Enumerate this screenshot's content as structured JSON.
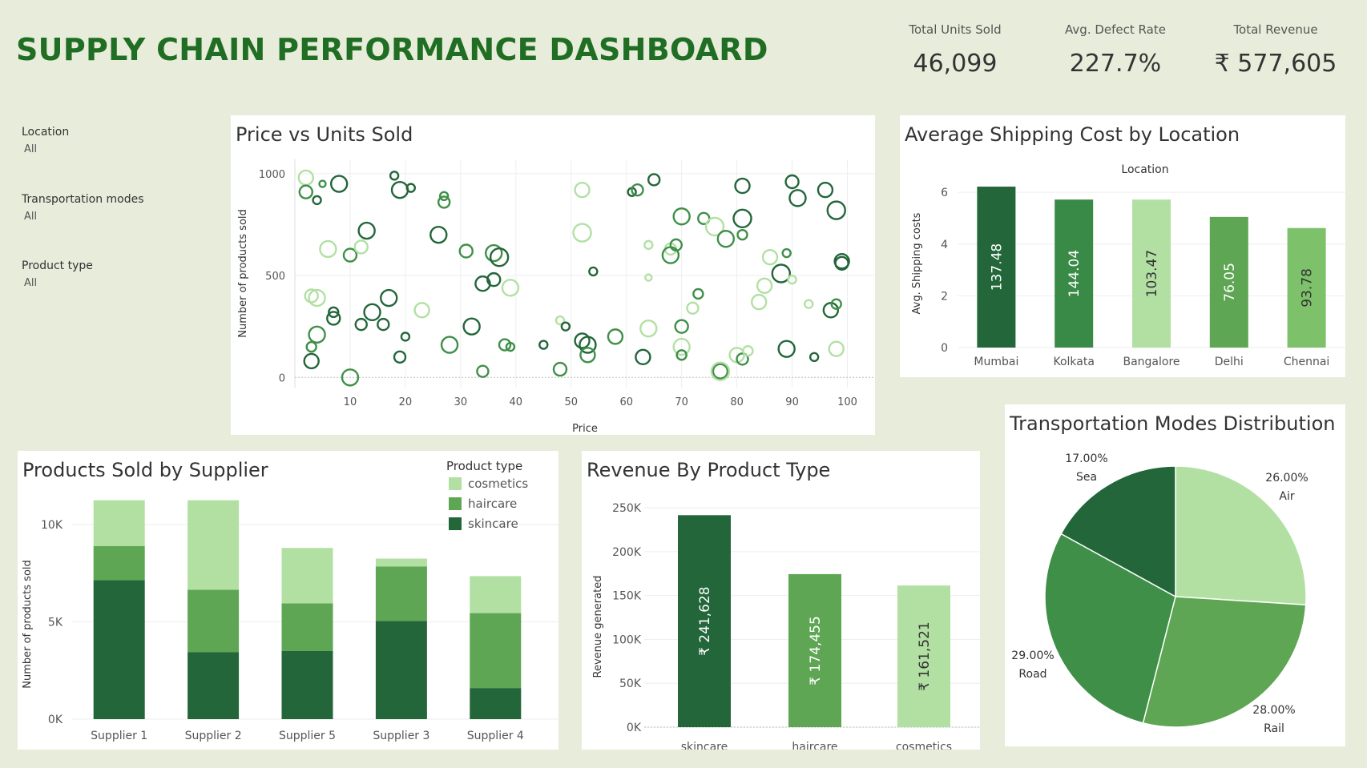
{
  "dashboard": {
    "title": "SUPPLY CHAIN PERFORMANCE DASHBOARD"
  },
  "kpis": [
    {
      "label": "Total Units Sold",
      "value": "46,099"
    },
    {
      "label": "Avg. Defect Rate",
      "value": "227.7%"
    },
    {
      "label": "Total Revenue",
      "value": "₹ 577,605"
    }
  ],
  "filters": [
    {
      "label": "Location",
      "value": "All"
    },
    {
      "label": "Transportation modes",
      "value": "All"
    },
    {
      "label": "Product type",
      "value": "All"
    }
  ],
  "colors": {
    "dark": "#23663a",
    "mid": "#3f8f48",
    "midlight": "#5ea653",
    "light": "#7dc26b",
    "pale": "#b2e0a3",
    "bg": "#e8ecdb"
  },
  "charts": {
    "scatter": {
      "title": "Price vs Units Sold",
      "chart_data": {
        "type": "scatter",
        "xlabel": "Price",
        "ylabel": "Number of products sold",
        "xlim": [
          0,
          105
        ],
        "ylim": [
          -50,
          1070
        ],
        "xticks": [
          10,
          20,
          30,
          40,
          50,
          60,
          70,
          80,
          90,
          100
        ],
        "yticks": [
          0,
          500,
          1000
        ],
        "points": [
          [
            2,
            980,
            9,
            0
          ],
          [
            2,
            910,
            8,
            1
          ],
          [
            4,
            870,
            5,
            2
          ],
          [
            5,
            950,
            4,
            1
          ],
          [
            3,
            400,
            8,
            0
          ],
          [
            4,
            390,
            10,
            0
          ],
          [
            6,
            630,
            10,
            0
          ],
          [
            4,
            210,
            10,
            1
          ],
          [
            3,
            80,
            9,
            2
          ],
          [
            3,
            150,
            6,
            1
          ],
          [
            7,
            290,
            8,
            2
          ],
          [
            7,
            320,
            6,
            2
          ],
          [
            8,
            950,
            10,
            2
          ],
          [
            10,
            600,
            8,
            1
          ],
          [
            12,
            640,
            8,
            0
          ],
          [
            13,
            720,
            10,
            2
          ],
          [
            10,
            0,
            10,
            1
          ],
          [
            14,
            320,
            10,
            2
          ],
          [
            12,
            260,
            7,
            2
          ],
          [
            16,
            260,
            7,
            2
          ],
          [
            17,
            390,
            10,
            2
          ],
          [
            18,
            990,
            5,
            2
          ],
          [
            19,
            920,
            10,
            2
          ],
          [
            21,
            930,
            5,
            2
          ],
          [
            20,
            200,
            5,
            2
          ],
          [
            19,
            100,
            7,
            2
          ],
          [
            23,
            330,
            9,
            0
          ],
          [
            26,
            700,
            10,
            2
          ],
          [
            27,
            860,
            7,
            1
          ],
          [
            27,
            890,
            5,
            1
          ],
          [
            28,
            160,
            10,
            1
          ],
          [
            31,
            620,
            8,
            1
          ],
          [
            32,
            250,
            10,
            2
          ],
          [
            34,
            460,
            9,
            2
          ],
          [
            36,
            610,
            10,
            1
          ],
          [
            36,
            480,
            8,
            2
          ],
          [
            37,
            590,
            11,
            2
          ],
          [
            38,
            160,
            7,
            1
          ],
          [
            39,
            150,
            5,
            1
          ],
          [
            39,
            440,
            10,
            0
          ],
          [
            34,
            30,
            7,
            1
          ],
          [
            45,
            160,
            5,
            2
          ],
          [
            48,
            280,
            5,
            0
          ],
          [
            48,
            40,
            8,
            1
          ],
          [
            52,
            920,
            9,
            0
          ],
          [
            52,
            710,
            11,
            0
          ],
          [
            53,
            160,
            10,
            2
          ],
          [
            52,
            180,
            9,
            2
          ],
          [
            53,
            110,
            9,
            1
          ],
          [
            49,
            250,
            5,
            2
          ],
          [
            54,
            520,
            5,
            2
          ],
          [
            58,
            200,
            9,
            1
          ],
          [
            61,
            910,
            5,
            2
          ],
          [
            62,
            920,
            7,
            1
          ],
          [
            63,
            100,
            9,
            2
          ],
          [
            64,
            240,
            10,
            0
          ],
          [
            65,
            970,
            7,
            2
          ],
          [
            64,
            650,
            5,
            0
          ],
          [
            64,
            490,
            4,
            0
          ],
          [
            68,
            630,
            7,
            0
          ],
          [
            68,
            600,
            10,
            1
          ],
          [
            69,
            650,
            7,
            1
          ],
          [
            70,
            790,
            10,
            1
          ],
          [
            70,
            250,
            8,
            1
          ],
          [
            70,
            150,
            10,
            0
          ],
          [
            70,
            110,
            6,
            1
          ],
          [
            72,
            340,
            7,
            0
          ],
          [
            73,
            410,
            6,
            1
          ],
          [
            74,
            780,
            7,
            1
          ],
          [
            76,
            740,
            11,
            0
          ],
          [
            78,
            680,
            10,
            1
          ],
          [
            77,
            30,
            9,
            1
          ],
          [
            77,
            30,
            11,
            0
          ],
          [
            81,
            780,
            11,
            2
          ],
          [
            81,
            700,
            6,
            1
          ],
          [
            80,
            110,
            9,
            0
          ],
          [
            81,
            90,
            7,
            1
          ],
          [
            82,
            130,
            6,
            0
          ],
          [
            81,
            940,
            9,
            2
          ],
          [
            84,
            370,
            9,
            0
          ],
          [
            85,
            450,
            9,
            0
          ],
          [
            86,
            590,
            9,
            0
          ],
          [
            88,
            510,
            11,
            2
          ],
          [
            89,
            610,
            5,
            1
          ],
          [
            89,
            140,
            10,
            2
          ],
          [
            90,
            480,
            5,
            0
          ],
          [
            90,
            960,
            8,
            2
          ],
          [
            91,
            880,
            10,
            2
          ],
          [
            93,
            360,
            5,
            0
          ],
          [
            94,
            100,
            5,
            2
          ],
          [
            96,
            920,
            9,
            2
          ],
          [
            97,
            330,
            9,
            2
          ],
          [
            98,
            820,
            11,
            2
          ],
          [
            98,
            360,
            6,
            1
          ],
          [
            98,
            140,
            9,
            0
          ],
          [
            99,
            570,
            9,
            2
          ],
          [
            99,
            560,
            8,
            2
          ]
        ]
      }
    },
    "shipping": {
      "title": "Average Shipping Cost by Location",
      "chart_data": {
        "type": "bar",
        "header": "Location",
        "ylabel": "Avg. Shipping costs",
        "ylim": [
          0,
          6.5
        ],
        "yticks": [
          0,
          2,
          4,
          6
        ],
        "categories": [
          "Mumbai",
          "Kolkata",
          "Bangalore",
          "Delhi",
          "Chennai"
        ],
        "values": [
          6.22,
          5.72,
          5.72,
          5.05,
          4.62
        ],
        "labels": [
          "137.48",
          "144.04",
          "103.47",
          "76.05",
          "93.78"
        ],
        "colors": [
          "#23663a",
          "#3a8a47",
          "#b2e0a3",
          "#5ea653",
          "#7dc26b"
        ],
        "labelColors": [
          "#ffffff",
          "#ffffff",
          "#333333",
          "#ffffff",
          "#333333"
        ]
      }
    },
    "supplier": {
      "title": "Products Sold by Supplier",
      "legend_title": "Product type",
      "chart_data": {
        "type": "bar",
        "stacked": true,
        "ylabel": "Number of products sold",
        "ylim": [
          0,
          11400
        ],
        "yticks": [
          0,
          5000,
          10000
        ],
        "ytick_labels": [
          "0K",
          "5K",
          "10K"
        ],
        "categories": [
          "Supplier 1",
          "Supplier 2",
          "Supplier 5",
          "Supplier 3",
          "Supplier 4"
        ],
        "series": [
          {
            "name": "skincare",
            "color": "#23663a",
            "values": [
              7150,
              3450,
              3500,
              5050,
              1600
            ]
          },
          {
            "name": "haircare",
            "color": "#5ea653",
            "values": [
              1750,
              3200,
              2450,
              2800,
              3850
            ]
          },
          {
            "name": "cosmetics",
            "color": "#b2e0a3",
            "values": [
              2350,
              4600,
              2850,
              400,
              1900
            ]
          }
        ]
      }
    },
    "revenue": {
      "title": "Revenue By Product Type",
      "chart_data": {
        "type": "bar",
        "ylabel": "Revenue generated",
        "ylim": [
          0,
          262000
        ],
        "yticks": [
          0,
          50000,
          100000,
          150000,
          200000,
          250000
        ],
        "ytick_labels": [
          "0K",
          "50K",
          "100K",
          "150K",
          "200K",
          "250K"
        ],
        "categories": [
          "skincare",
          "haircare",
          "cosmetics"
        ],
        "values": [
          241628,
          174455,
          161521
        ],
        "labels": [
          "₹ 241,628",
          "₹ 174,455",
          "₹ 161,521"
        ],
        "colors": [
          "#23663a",
          "#5ea653",
          "#b2e0a3"
        ],
        "labelColors": [
          "#ffffff",
          "#ffffff",
          "#333333"
        ]
      }
    },
    "transport": {
      "title": "Transportation Modes Distribution",
      "chart_data": {
        "type": "pie",
        "categories": [
          "Air",
          "Rail",
          "Road",
          "Sea"
        ],
        "values": [
          26.0,
          28.0,
          29.0,
          17.0
        ],
        "labels": [
          "26.00%",
          "28.00%",
          "29.00%",
          "17.00%"
        ],
        "colors": [
          "#b2e0a3",
          "#5ea653",
          "#3f8f48",
          "#23663a"
        ]
      }
    }
  }
}
